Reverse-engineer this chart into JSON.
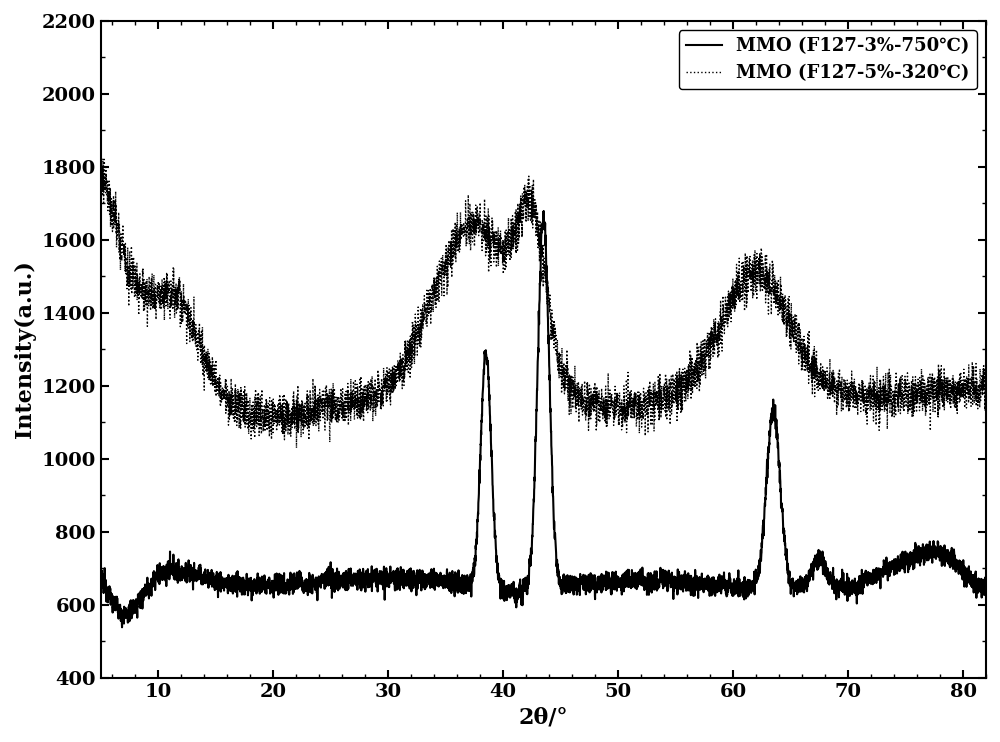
{
  "title": "",
  "xlabel": "2θ/°",
  "ylabel": "Intensity(a.u.)",
  "xlim": [
    5,
    82
  ],
  "ylim": [
    400,
    2200
  ],
  "xticks": [
    10,
    20,
    30,
    40,
    50,
    60,
    70,
    80
  ],
  "yticks": [
    400,
    600,
    800,
    1000,
    1200,
    1400,
    1600,
    1800,
    2000,
    2200
  ],
  "legend1": "MMO (F127-3%-750℃)",
  "legend2": "MMO (F127-5%-320℃)",
  "background_color": "#ffffff",
  "line1_color": "#000000",
  "line2_color": "#000000",
  "figsize": [
    10.0,
    7.42
  ],
  "dpi": 100
}
